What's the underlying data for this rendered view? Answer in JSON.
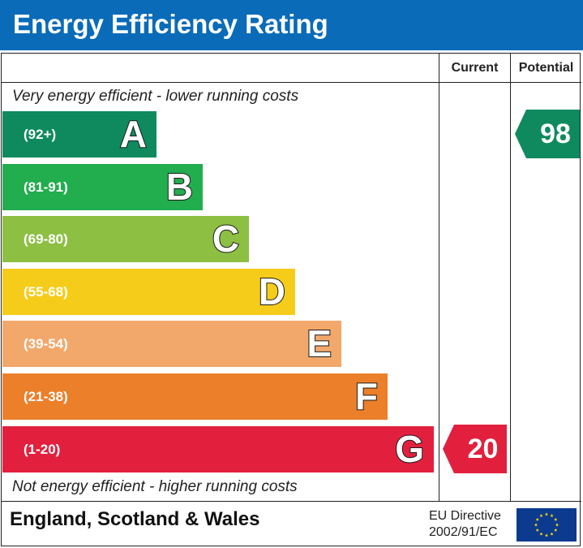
{
  "header": {
    "title": "Energy Efficiency Rating"
  },
  "columns": {
    "current": "Current",
    "potential": "Potential"
  },
  "captions": {
    "top": "Very energy efficient - lower running costs",
    "bottom": "Not energy efficient - higher running costs"
  },
  "chart_data": {
    "type": "bar",
    "title": "Energy Efficiency Rating",
    "categories": [
      "A",
      "B",
      "C",
      "D",
      "E",
      "F",
      "G"
    ],
    "bands": [
      {
        "letter": "A",
        "range": "(92+)",
        "color": "#0f8a5f"
      },
      {
        "letter": "B",
        "range": "(81-91)",
        "color": "#22ad4e"
      },
      {
        "letter": "C",
        "range": "(69-80)",
        "color": "#8dbf43"
      },
      {
        "letter": "D",
        "range": "(55-68)",
        "color": "#f6cc1a"
      },
      {
        "letter": "E",
        "range": "(39-54)",
        "color": "#f2a86b"
      },
      {
        "letter": "F",
        "range": "(21-38)",
        "color": "#ec7f2a"
      },
      {
        "letter": "G",
        "range": "(1-20)",
        "color": "#e2203e"
      }
    ],
    "current": {
      "value": "20",
      "band": "G",
      "color": "#e2203e"
    },
    "potential": {
      "value": "98",
      "band": "A",
      "color": "#0f8a5f"
    }
  },
  "footer": {
    "region": "England, Scotland & Wales",
    "directive_line1": "EU Directive",
    "directive_line2": "2002/91/EC"
  },
  "colors": {
    "header": "#0a6bb8",
    "eu_flag": "#0b3a8f",
    "eu_stars": "#ffdd00"
  }
}
